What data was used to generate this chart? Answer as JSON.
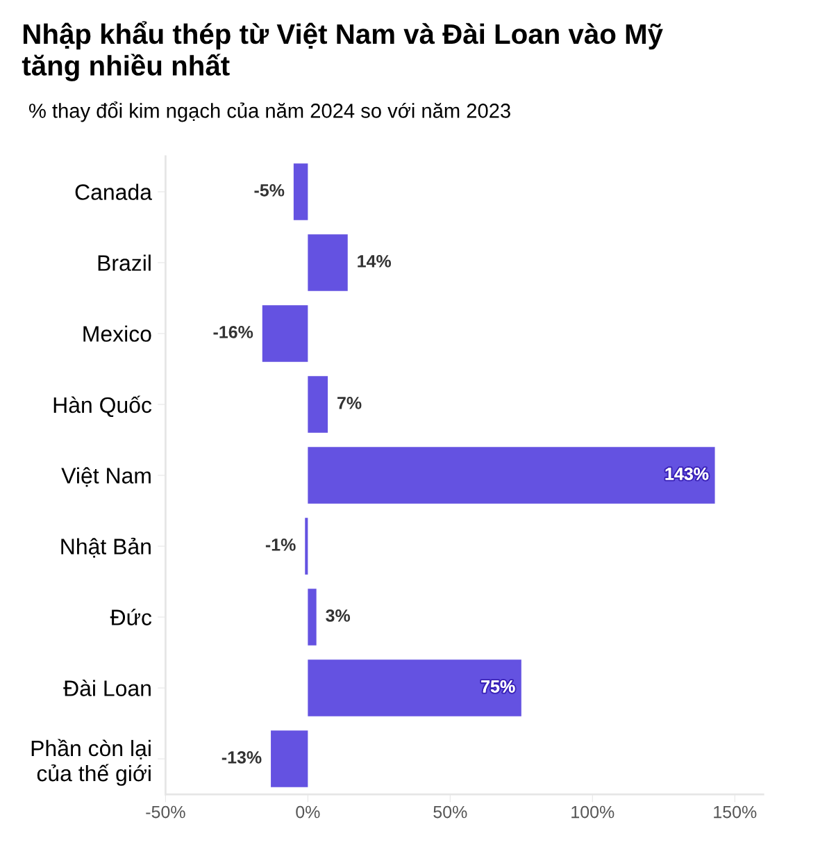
{
  "chart_data": {
    "type": "bar",
    "orientation": "horizontal",
    "title": "Nhập khẩu thép từ Việt Nam và Đài Loan vào Mỹ\ntăng nhiều nhất",
    "subtitle": "% thay đổi kim ngạch của năm 2024 so với năm 2023",
    "categories": [
      "Canada",
      "Brazil",
      "Mexico",
      "Hàn Quốc",
      "Việt Nam",
      "Nhật Bản",
      "Đức",
      "Đài Loan",
      "Phần còn lại\ncủa thế giới"
    ],
    "values": [
      -5,
      14,
      -16,
      7,
      143,
      -1,
      3,
      75,
      -13
    ],
    "value_labels": [
      "-5%",
      "14%",
      "-16%",
      "7%",
      "143%",
      "-1%",
      "3%",
      "75%",
      "-13%"
    ],
    "color": "#6452e1",
    "xlim": [
      -50,
      160
    ],
    "xticks": [
      {
        "value": -50,
        "label": "-50%"
      },
      {
        "value": 0,
        "label": "0%"
      },
      {
        "value": 50,
        "label": "50%"
      },
      {
        "value": 100,
        "label": "100%"
      },
      {
        "value": 150,
        "label": "150%"
      }
    ],
    "grid": false
  }
}
